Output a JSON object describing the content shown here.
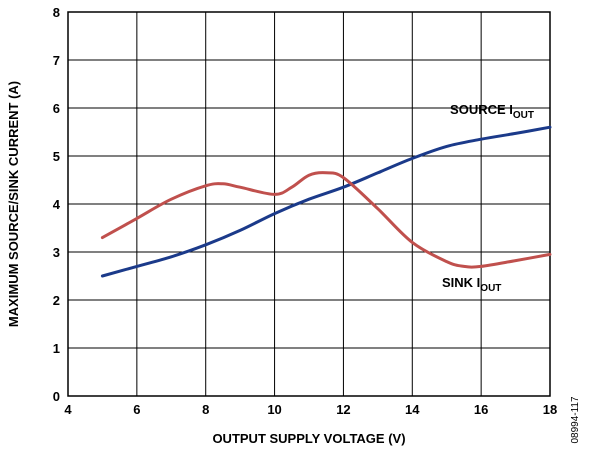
{
  "chart_data": {
    "type": "line",
    "xlabel": "OUTPUT SUPPLY VOLTAGE (V)",
    "ylabel": "MAXIMUM SOURCE/SINK CURRENT (A)",
    "xlim": [
      4,
      18
    ],
    "ylim": [
      0,
      8
    ],
    "xticks": [
      4,
      6,
      8,
      10,
      12,
      14,
      16,
      18
    ],
    "yticks": [
      0,
      1,
      2,
      3,
      4,
      5,
      6,
      7,
      8
    ],
    "grid": true,
    "figure_id": "08994-117",
    "series": [
      {
        "name": "SOURCE I_OUT",
        "label_main": "SOURCE I",
        "label_sub": "OUT",
        "color": "#1b3a8a",
        "x": [
          5,
          6,
          7,
          8,
          9,
          10,
          11,
          12,
          13,
          14,
          15,
          16,
          17,
          18
        ],
        "y": [
          2.5,
          2.7,
          2.9,
          3.15,
          3.45,
          3.8,
          4.1,
          4.35,
          4.65,
          4.95,
          5.2,
          5.35,
          5.47,
          5.6
        ]
      },
      {
        "name": "SINK I_OUT",
        "label_main": "SINK I",
        "label_sub": "OUT",
        "color": "#c0504d",
        "x": [
          5,
          6,
          7,
          8,
          8.5,
          9,
          10,
          10.5,
          11,
          11.5,
          12,
          13,
          14,
          15,
          15.5,
          16,
          17,
          18
        ],
        "y": [
          3.3,
          3.7,
          4.1,
          4.38,
          4.42,
          4.35,
          4.2,
          4.35,
          4.6,
          4.65,
          4.55,
          3.9,
          3.2,
          2.8,
          2.7,
          2.7,
          2.82,
          2.95
        ]
      }
    ]
  }
}
